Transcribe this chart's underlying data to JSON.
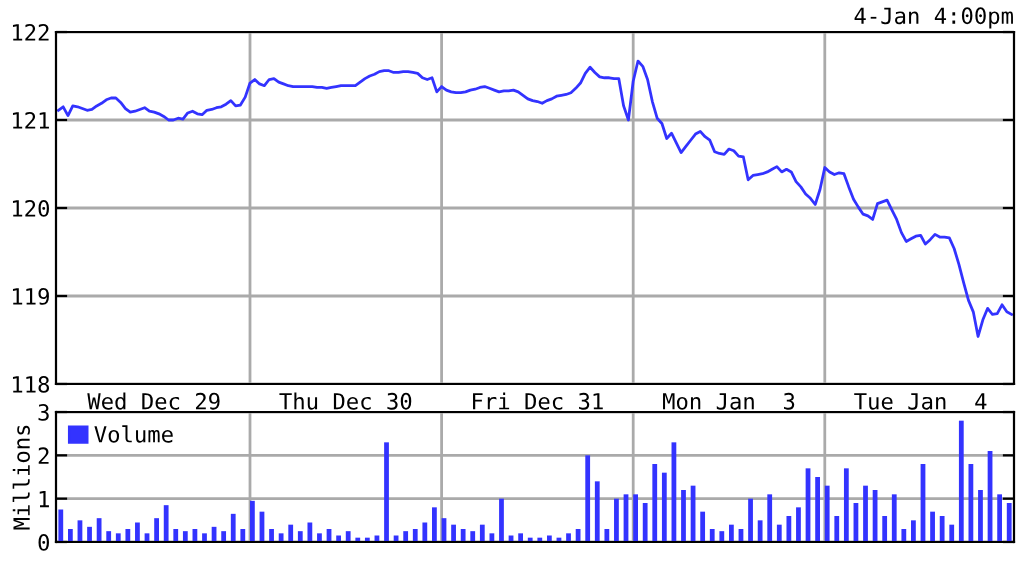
{
  "chart_data": [
    {
      "type": "line",
      "subtitle": "4-Jan 4:00pm",
      "categories": [
        null,
        null,
        null,
        null,
        null,
        null,
        null,
        null,
        null,
        null,
        null,
        null,
        null,
        null,
        null,
        null,
        null,
        null,
        null,
        null,
        "Wed Dec 29",
        null,
        null,
        null,
        null,
        null,
        null,
        null,
        null,
        null,
        null,
        null,
        null,
        null,
        null,
        null,
        null,
        null,
        null,
        null,
        null,
        null,
        null,
        null,
        null,
        null,
        null,
        null,
        null,
        null,
        null,
        null,
        null,
        null,
        null,
        null,
        null,
        null,
        null,
        null,
        "Thu Dec 30",
        null,
        null,
        null,
        null,
        null,
        null,
        null,
        null,
        null,
        null,
        null,
        null,
        null,
        null,
        null,
        null,
        null,
        null,
        null,
        null,
        null,
        null,
        null,
        null,
        null,
        null,
        null,
        null,
        null,
        null,
        null,
        null,
        null,
        null,
        null,
        null,
        null,
        null,
        null,
        "Fri Dec 31",
        null,
        null,
        null,
        null,
        null,
        null,
        null,
        null,
        null,
        null,
        null,
        null,
        null,
        null,
        null,
        null,
        null,
        null,
        null,
        null,
        null,
        null,
        null,
        null,
        null,
        null,
        null,
        null,
        null,
        null,
        null,
        null,
        null,
        null,
        null,
        null,
        null,
        null,
        null,
        "Mon Jan  3",
        null,
        null,
        null,
        null,
        null,
        null,
        null,
        null,
        null,
        null,
        null,
        null,
        null,
        null,
        null,
        null,
        null,
        null,
        null,
        null,
        null,
        null,
        null,
        null,
        null,
        null,
        null,
        null,
        null,
        null,
        null,
        null,
        null,
        null,
        null,
        null,
        null,
        null,
        null,
        "Tue Jan  4",
        null,
        null,
        null,
        null,
        null,
        null,
        null,
        null,
        null,
        null,
        null,
        null,
        null,
        null,
        null,
        null,
        null,
        null,
        null
      ],
      "ylim": [
        118,
        122
      ],
      "yticks": [
        118,
        119,
        120,
        121,
        122
      ],
      "grid": true,
      "legend": false,
      "marker": "none",
      "line_style": "solid",
      "series": [
        {
          "color": "#3333ff",
          "values": [
            121.11,
            121.15,
            121.05,
            121.16,
            121.15,
            121.13,
            121.11,
            121.12,
            121.16,
            121.19,
            121.23,
            121.25,
            121.25,
            121.2,
            121.13,
            121.09,
            121.1,
            121.12,
            121.14,
            121.1,
            121.09,
            121.07,
            121.04,
            121.0,
            121.0,
            121.02,
            121.01,
            121.08,
            121.1,
            121.07,
            121.06,
            121.11,
            121.12,
            121.14,
            121.15,
            121.18,
            121.22,
            121.16,
            121.17,
            121.26,
            121.42,
            121.46,
            121.41,
            121.39,
            121.46,
            121.47,
            121.43,
            121.41,
            121.39,
            121.38,
            121.38,
            121.38,
            121.38,
            121.38,
            121.37,
            121.37,
            121.36,
            121.37,
            121.38,
            121.39,
            121.39,
            121.39,
            121.39,
            121.43,
            121.47,
            121.5,
            121.52,
            121.55,
            121.56,
            121.56,
            121.54,
            121.54,
            121.55,
            121.55,
            121.54,
            121.53,
            121.48,
            121.46,
            121.48,
            121.32,
            121.38,
            121.34,
            121.32,
            121.31,
            121.31,
            121.32,
            121.34,
            121.35,
            121.37,
            121.38,
            121.36,
            121.34,
            121.32,
            121.33,
            121.33,
            121.34,
            121.32,
            121.28,
            121.24,
            121.22,
            121.21,
            121.19,
            121.22,
            121.24,
            121.27,
            121.28,
            121.29,
            121.31,
            121.36,
            121.42,
            121.53,
            121.6,
            121.54,
            121.49,
            121.48,
            121.48,
            121.47,
            121.47,
            121.16,
            121.0,
            121.44,
            121.67,
            121.61,
            121.46,
            121.21,
            121.02,
            120.96,
            120.79,
            120.85,
            120.74,
            120.63,
            120.7,
            120.77,
            120.84,
            120.87,
            120.81,
            120.77,
            120.64,
            120.62,
            120.61,
            120.67,
            120.65,
            120.59,
            120.58,
            120.32,
            120.37,
            120.38,
            120.39,
            120.41,
            120.44,
            120.47,
            120.41,
            120.44,
            120.41,
            120.3,
            120.24,
            120.16,
            120.11,
            120.04,
            120.21,
            120.46,
            120.41,
            120.38,
            120.4,
            120.39,
            120.24,
            120.1,
            120.01,
            119.93,
            119.91,
            119.87,
            120.05,
            120.07,
            120.09,
            119.98,
            119.87,
            119.72,
            119.62,
            119.65,
            119.68,
            119.69,
            119.59,
            119.64,
            119.7,
            119.67,
            119.67,
            119.66,
            119.54,
            119.36,
            119.15,
            118.95,
            118.82,
            118.54,
            118.73,
            118.86,
            118.79,
            118.8,
            118.9,
            118.82,
            118.79
          ]
        }
      ]
    },
    {
      "type": "bar",
      "ylabel": "Millions",
      "ylim": [
        0,
        3
      ],
      "yticks": [
        0,
        1,
        2,
        3
      ],
      "categories": [
        null,
        null,
        null,
        null,
        null,
        null,
        null,
        null,
        null,
        null,
        null,
        null,
        null,
        null,
        null,
        null,
        null,
        null,
        null,
        null,
        null,
        null,
        null,
        null,
        null,
        null,
        null,
        null,
        null,
        null,
        null,
        null,
        null,
        null,
        null,
        null,
        null,
        null,
        null,
        null,
        null,
        null,
        null,
        null,
        null,
        null,
        null,
        null,
        null,
        null,
        null,
        null,
        null,
        null,
        null,
        null,
        null,
        null,
        null,
        null,
        null,
        null,
        null,
        null,
        null,
        null,
        null,
        null,
        null,
        null,
        null,
        null,
        null,
        null,
        null,
        null,
        null,
        null,
        null,
        null,
        null,
        null,
        null,
        null,
        null,
        null,
        null,
        null,
        null,
        null,
        null,
        null,
        null,
        null,
        null,
        null,
        null,
        null,
        null,
        null
      ],
      "grid": true,
      "legend": "top left",
      "series": [
        {
          "name": "Volume",
          "color": "#3333ff",
          "values": [
            0.75,
            0.3,
            0.5,
            0.35,
            0.55,
            0.25,
            0.2,
            0.3,
            0.45,
            0.2,
            0.55,
            0.85,
            0.3,
            0.25,
            0.3,
            0.2,
            0.35,
            0.25,
            0.65,
            0.3,
            0.95,
            0.7,
            0.3,
            0.2,
            0.4,
            0.25,
            0.45,
            0.2,
            0.3,
            0.15,
            0.25,
            0.1,
            0.1,
            0.15,
            2.3,
            0.15,
            0.25,
            0.3,
            0.45,
            0.8,
            0.55,
            0.4,
            0.3,
            0.25,
            0.4,
            0.2,
            1.0,
            0.15,
            0.2,
            0.1,
            0.1,
            0.15,
            0.1,
            0.2,
            0.3,
            2.0,
            1.4,
            0.3,
            1.0,
            1.1,
            1.1,
            0.9,
            1.8,
            1.6,
            2.3,
            1.2,
            1.3,
            0.7,
            0.3,
            0.25,
            0.4,
            0.3,
            1.0,
            0.5,
            1.1,
            0.4,
            0.6,
            0.8,
            1.7,
            1.5,
            1.3,
            0.6,
            1.7,
            0.9,
            1.3,
            1.2,
            0.6,
            1.1,
            0.3,
            0.5,
            1.8,
            0.7,
            0.6,
            0.4,
            2.8,
            1.8,
            1.2,
            2.1,
            1.1,
            0.9
          ]
        }
      ]
    }
  ]
}
